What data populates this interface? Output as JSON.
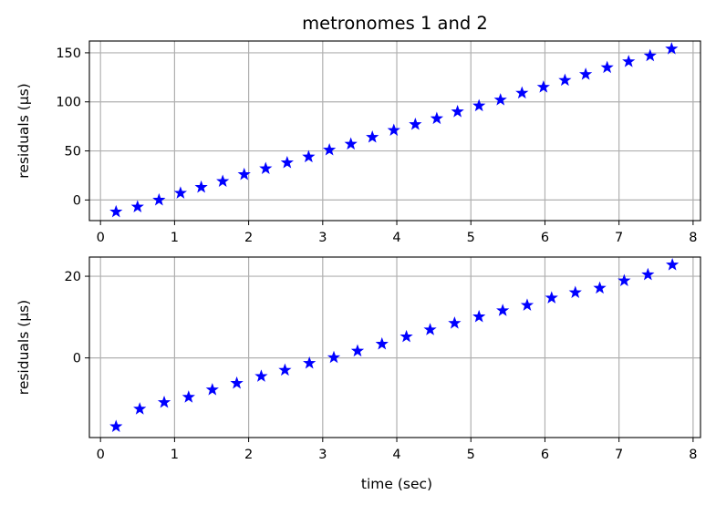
{
  "chart_data": [
    {
      "type": "scatter",
      "title": "metronomes 1 and 2",
      "xlabel": "",
      "ylabel": "residuals (μs)",
      "xlim": [
        -0.15,
        8.1
      ],
      "ylim": [
        -21,
        162
      ],
      "xticks": [
        0,
        1,
        2,
        3,
        4,
        5,
        6,
        7,
        8
      ],
      "yticks": [
        0,
        50,
        100,
        150
      ],
      "grid": true,
      "marker": "star",
      "color": "#0000ff",
      "x": [
        0.21,
        0.5,
        0.79,
        1.08,
        1.36,
        1.65,
        1.94,
        2.23,
        2.52,
        2.81,
        3.09,
        3.38,
        3.67,
        3.96,
        4.25,
        4.54,
        4.82,
        5.11,
        5.4,
        5.69,
        5.98,
        6.27,
        6.55,
        6.84,
        7.13,
        7.42,
        7.71
      ],
      "y": [
        -12,
        -7,
        0,
        7,
        13,
        19,
        26,
        32,
        38,
        44,
        51,
        57,
        64,
        71,
        77,
        83,
        90,
        96,
        102,
        109,
        115,
        122,
        128,
        135,
        141,
        147,
        154
      ]
    },
    {
      "type": "scatter",
      "title": "",
      "xlabel": "time (sec)",
      "ylabel": "residuals (μs)",
      "xlim": [
        -0.15,
        8.1
      ],
      "ylim": [
        -19.5,
        24.7
      ],
      "xticks": [
        0,
        1,
        2,
        3,
        4,
        5,
        6,
        7,
        8
      ],
      "yticks": [
        0,
        20
      ],
      "grid": true,
      "marker": "star",
      "color": "#0000ff",
      "x": [
        0.21,
        0.53,
        0.86,
        1.19,
        1.51,
        1.84,
        2.17,
        2.49,
        2.82,
        3.15,
        3.47,
        3.8,
        4.13,
        4.45,
        4.78,
        5.11,
        5.43,
        5.76,
        6.09,
        6.41,
        6.74,
        7.07,
        7.39,
        7.72
      ],
      "y": [
        -16.8,
        -12.5,
        -10.9,
        -9.6,
        -7.8,
        -6.2,
        -4.5,
        -3.0,
        -1.3,
        0.1,
        1.7,
        3.4,
        5.2,
        6.9,
        8.5,
        10.1,
        11.6,
        12.9,
        14.7,
        16.0,
        17.1,
        18.9,
        20.4,
        22.8
      ]
    }
  ]
}
